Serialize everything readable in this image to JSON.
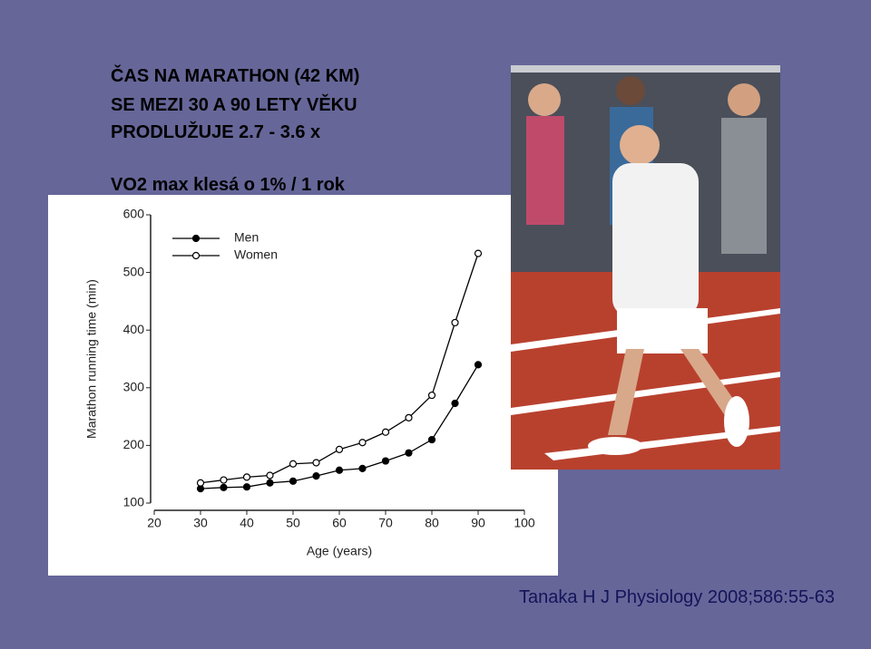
{
  "slide": {
    "title_lines": [
      "ČAS NA MARATHON (42 KM)",
      "SE MEZI 30 A 90 LETY VĚKU",
      "PRODLUŽUJE 2.7 - 3.6 x"
    ],
    "subtitle": "VO2 max klesá o 1% / 1 rok",
    "citation": "Tanaka H J Physiology 2008;586:55-63"
  },
  "chart_data": {
    "type": "line",
    "x_label": "Age (years)",
    "y_label": "Marathon running time (min)",
    "x": [
      30,
      35,
      40,
      45,
      50,
      55,
      60,
      65,
      70,
      75,
      80,
      85,
      90
    ],
    "series": [
      {
        "name": "Men",
        "color": "#000000",
        "marker_fill": "#000000",
        "values": [
          125,
          127,
          128,
          135,
          138,
          147,
          157,
          160,
          173,
          187,
          210,
          273,
          340
        ]
      },
      {
        "name": "Women",
        "color": "#000000",
        "marker_fill": "#ffffff",
        "values": [
          135,
          140,
          145,
          148,
          168,
          170,
          193,
          205,
          223,
          248,
          287,
          413,
          533
        ]
      }
    ],
    "xlim": [
      20,
      100
    ],
    "ylim": [
      100,
      600
    ],
    "xticks": [
      20,
      30,
      40,
      50,
      60,
      70,
      80,
      90,
      100
    ],
    "yticks": [
      100,
      200,
      300,
      400,
      500,
      600
    ],
    "grid": false,
    "legend": "upper left"
  }
}
